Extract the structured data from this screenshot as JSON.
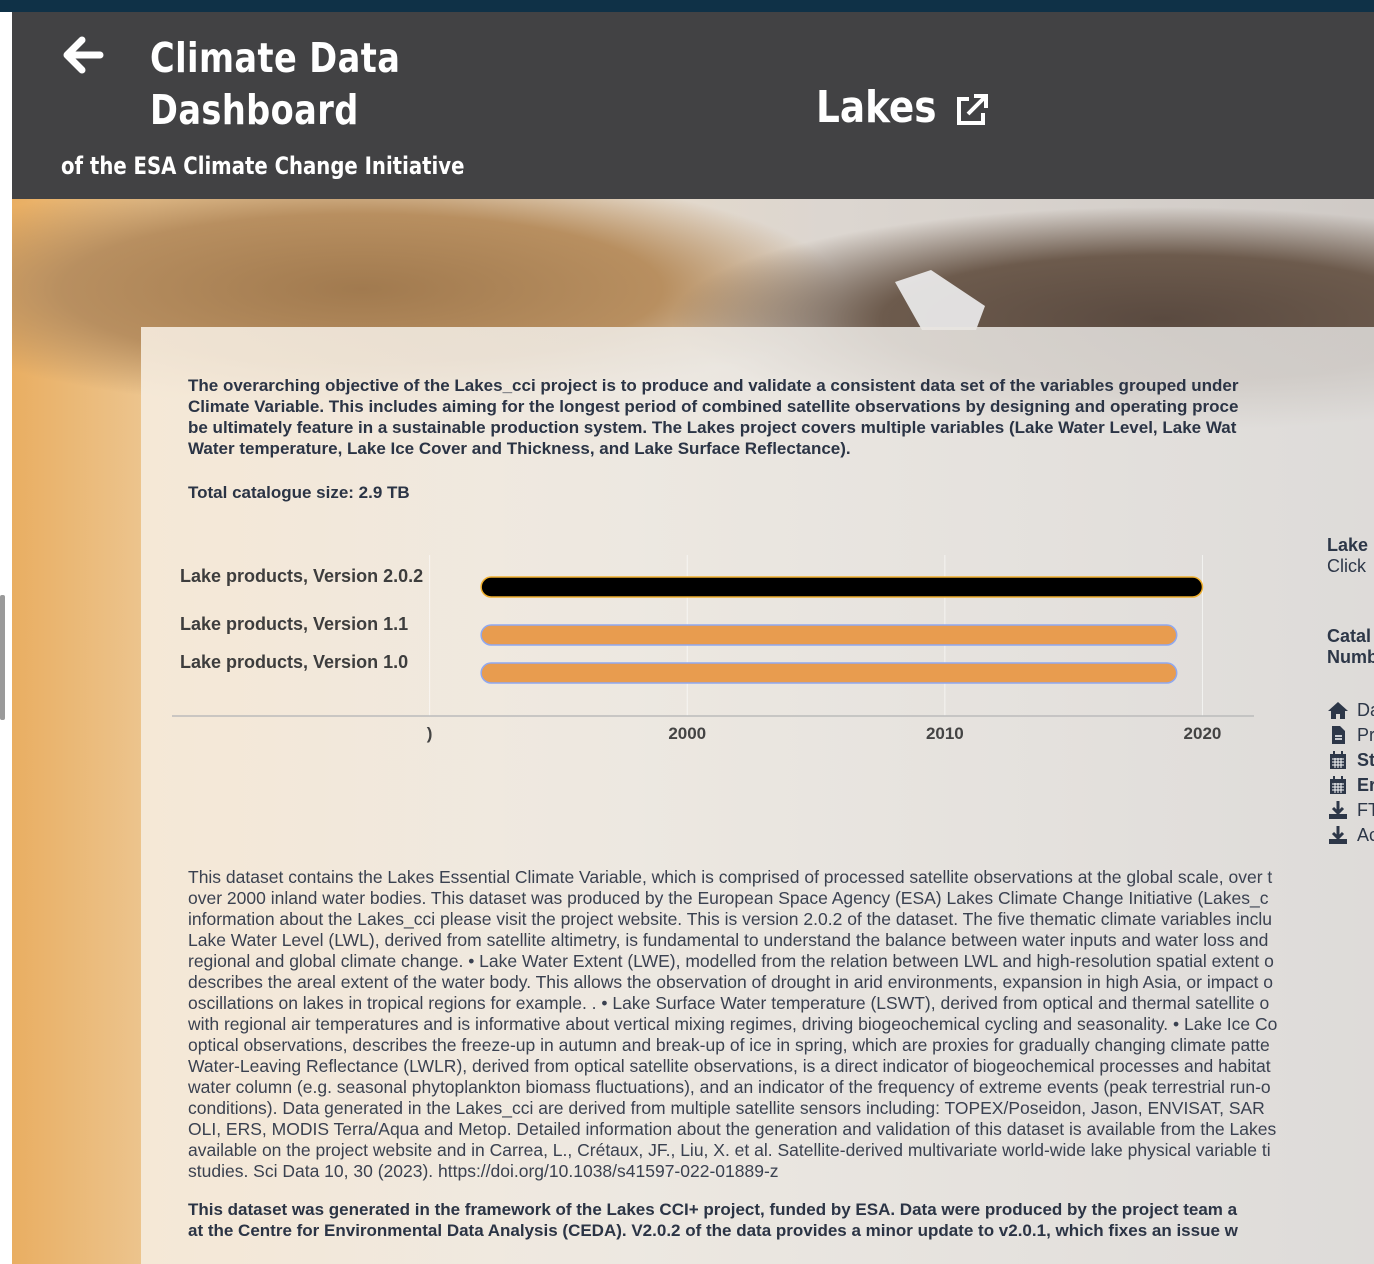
{
  "header": {
    "title_line1": "Climate Data",
    "title_line2": "Dashboard",
    "subtitle": "of the ESA Climate Change Initiative",
    "project": "Lakes",
    "icons": {
      "back": "arrow-left-icon",
      "external": "external-link-icon"
    }
  },
  "intro": {
    "lines": [
      "The overarching objective of the Lakes_cci project is to produce and validate a consistent data set of the variables grouped under",
      "Climate Variable. This includes aiming for the longest period of combined satellite observations by designing and operating proce",
      "be ultimately feature in a sustainable production system. The Lakes project covers multiple variables (Lake Water Level, Lake Wat",
      "Water temperature, Lake Ice Cover and Thickness, and Lake Surface Reflectance)."
    ],
    "catalogue_size": "Total catalogue size: 2.9 TB"
  },
  "chart_data": {
    "type": "timeline",
    "categories": [
      "Lake products, Version 2.0.2",
      "Lake products, Version 1.1",
      "Lake products, Version 1.0"
    ],
    "series": [
      {
        "start": 1992,
        "end": 2020,
        "color": "#000000",
        "border": "#f0b030",
        "selected": true
      },
      {
        "start": 1992,
        "end": 2019,
        "color": "#e89c4f",
        "border": "#8fa8f0"
      },
      {
        "start": 1992,
        "end": 2019,
        "color": "#e89c4f",
        "border": "#8fa8f0"
      }
    ],
    "x_ticks": [
      1990,
      2000,
      2010,
      2020
    ],
    "x_tick_labels": [
      ")",
      "2000",
      "2010",
      "2020"
    ],
    "xlim": [
      1980,
      2022
    ],
    "grid": true
  },
  "side": {
    "heading": "Lake",
    "hint": "Click",
    "catalogue": "Catal",
    "number": "Numb",
    "links": [
      {
        "icon": "home-icon",
        "label": "Da",
        "bold": false
      },
      {
        "icon": "document-icon",
        "label": "Pr",
        "bold": false
      },
      {
        "icon": "calendar-icon",
        "label": "St",
        "bold": true
      },
      {
        "icon": "calendar-icon",
        "label": "Er",
        "bold": true
      },
      {
        "icon": "download-icon",
        "label": "FT",
        "bold": false
      },
      {
        "icon": "download-icon",
        "label": "Ac",
        "bold": false
      }
    ]
  },
  "description": {
    "lines": [
      "This dataset contains the Lakes Essential Climate Variable, which is comprised of processed satellite observations at the global scale, over t",
      "over 2000 inland water bodies. This dataset was produced by the European Space Agency (ESA) Lakes Climate Change Initiative (Lakes_c",
      "information about the Lakes_cci please visit the project website. This is version 2.0.2 of the dataset. The five thematic climate variables inclu",
      "Lake Water Level (LWL), derived from satellite altimetry, is fundamental to understand the balance between water inputs and water loss and",
      "regional and global climate change. • Lake Water Extent (LWE), modelled from the relation between LWL and high-resolution spatial extent o",
      "describes the areal extent of the water body. This allows the observation of drought in arid environments, expansion in high Asia, or impact o",
      "oscillations on lakes in tropical regions for example. . • Lake Surface Water temperature (LSWT), derived from optical and thermal satellite o",
      "with regional air temperatures and is informative about vertical mixing regimes, driving biogeochemical cycling and seasonality. • Lake Ice Co",
      "optical observations, describes the freeze-up in autumn and break-up of ice in spring, which are proxies for gradually changing climate patte",
      "Water-Leaving Reflectance (LWLR), derived from optical satellite observations, is a direct indicator of biogeochemical processes and habitat",
      "water column (e.g. seasonal phytoplankton biomass fluctuations), and an indicator of the frequency of extreme events (peak terrestrial run-o",
      "conditions). Data generated in the Lakes_cci are derived from multiple satellite sensors including: TOPEX/Poseidon, Jason, ENVISAT, SAR",
      "OLI, ERS, MODIS Terra/Aqua and Metop. Detailed information about the generation and validation of this dataset is available from the Lakes",
      "available on the project website and in Carrea, L., Crétaux, JF., Liu, X. et al. Satellite-derived multivariate world-wide lake physical variable ti",
      "studies. Sci Data 10, 30 (2023). https://doi.org/10.1038/s41597-022-01889-z"
    ]
  },
  "funding": {
    "lines": [
      "This dataset was generated in the framework of the Lakes CCI+ project, funded by ESA. Data were produced by the project team a",
      "at the Centre for Environmental Data Analysis (CEDA). V2.0.2 of the data provides a minor update to v2.0.1, which fixes an issue w"
    ]
  }
}
